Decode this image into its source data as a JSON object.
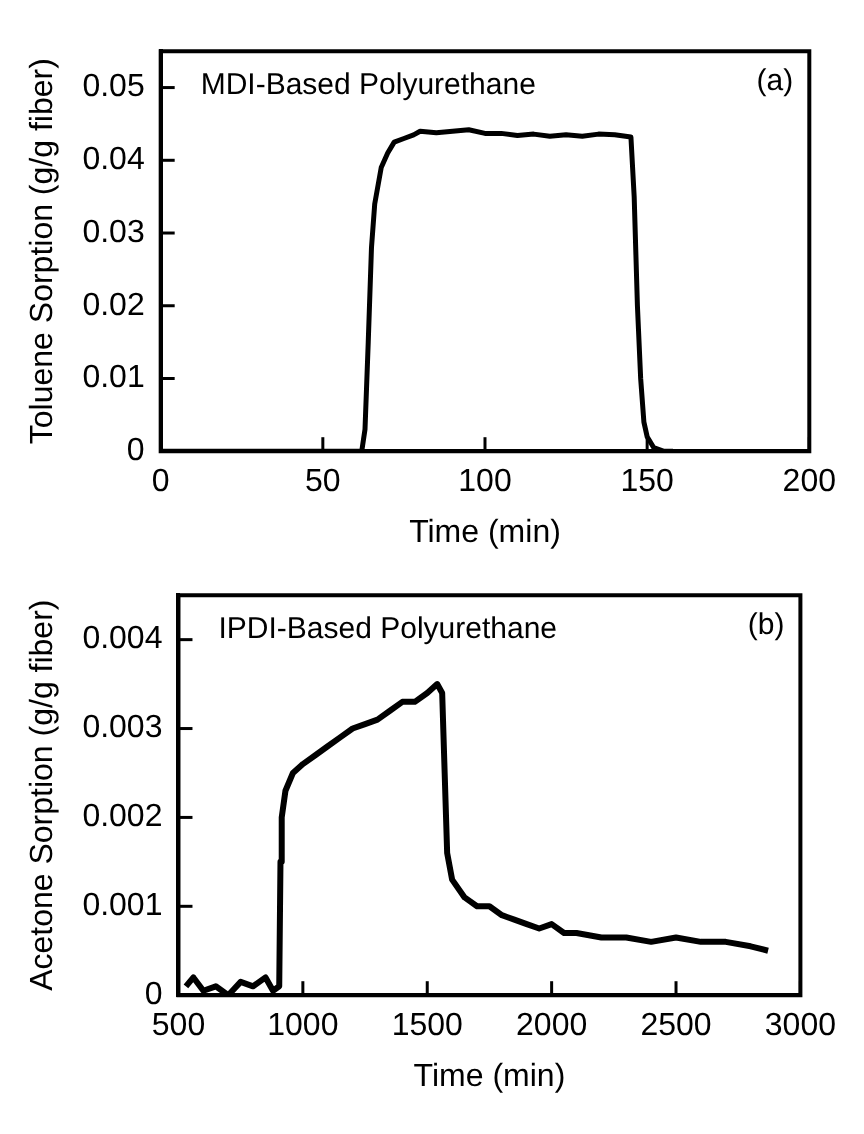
{
  "chart_data": [
    {
      "type": "line",
      "xlabel": "Time (min)",
      "ylabel": "Toluene Sorption (g/g fiber)",
      "annotations": [
        "MDI-Based Polyurethane",
        "(a)"
      ],
      "xlim": [
        0,
        200
      ],
      "xticks": [
        0,
        50,
        100,
        150,
        200
      ],
      "ylim": [
        0,
        0.055
      ],
      "yticks": [
        0,
        0.01,
        0.02,
        0.03,
        0.04,
        0.05
      ],
      "grid": false,
      "legend": false,
      "marker": "none",
      "line_style": "solid",
      "series": [
        {
          "color": "#000000",
          "x": [
            0,
            62,
            63,
            64,
            65,
            66,
            68,
            70,
            72,
            75,
            78,
            80,
            85,
            90,
            95,
            100,
            105,
            110,
            115,
            120,
            125,
            130,
            135,
            140,
            145,
            146,
            147,
            148,
            149,
            150,
            152,
            155,
            158
          ],
          "values": [
            0,
            0,
            0.003,
            0.015,
            0.028,
            0.034,
            0.039,
            0.041,
            0.0425,
            0.043,
            0.0435,
            0.044,
            0.0438,
            0.044,
            0.0442,
            0.0437,
            0.0437,
            0.0434,
            0.0436,
            0.0433,
            0.0435,
            0.0433,
            0.0436,
            0.0435,
            0.0432,
            0.035,
            0.02,
            0.01,
            0.004,
            0.002,
            0.0005,
            0,
            0
          ]
        }
      ]
    },
    {
      "type": "line",
      "xlabel": "Time (min)",
      "ylabel": "Acetone Sorption (g/g fiber)",
      "annotations": [
        "IPDI-Based Polyurethane",
        "(b)"
      ],
      "xlim": [
        500,
        3000
      ],
      "xticks": [
        500,
        1000,
        1500,
        2000,
        2500,
        3000
      ],
      "ylim": [
        0,
        0.0045
      ],
      "yticks": [
        0,
        0.001,
        0.002,
        0.003,
        0.004
      ],
      "grid": false,
      "legend": false,
      "marker": "none",
      "line_style": "solid",
      "series": [
        {
          "color": "#000000",
          "x": [
            530,
            560,
            600,
            650,
            700,
            750,
            800,
            850,
            880,
            905,
            910,
            915,
            930,
            960,
            1000,
            1050,
            1100,
            1150,
            1200,
            1250,
            1300,
            1350,
            1400,
            1450,
            1500,
            1540,
            1560,
            1570,
            1580,
            1600,
            1650,
            1700,
            1750,
            1800,
            1850,
            1900,
            1950,
            2000,
            2050,
            2100,
            2200,
            2300,
            2400,
            2500,
            2600,
            2700,
            2800,
            2870
          ],
          "values": [
            0.0001,
            0.0002,
            5e-05,
            0.0001,
            0,
            0.00015,
            0.0001,
            0.0002,
            5e-05,
            0.0001,
            0.0015,
            0.002,
            0.0023,
            0.0025,
            0.0026,
            0.0027,
            0.0028,
            0.0029,
            0.003,
            0.00305,
            0.0031,
            0.0032,
            0.0033,
            0.0033,
            0.0034,
            0.0035,
            0.0034,
            0.0025,
            0.0016,
            0.0013,
            0.0011,
            0.001,
            0.001,
            0.0009,
            0.00085,
            0.0008,
            0.00075,
            0.0008,
            0.0007,
            0.0007,
            0.00065,
            0.00065,
            0.0006,
            0.00065,
            0.0006,
            0.0006,
            0.00055,
            0.0005
          ]
        }
      ]
    }
  ]
}
